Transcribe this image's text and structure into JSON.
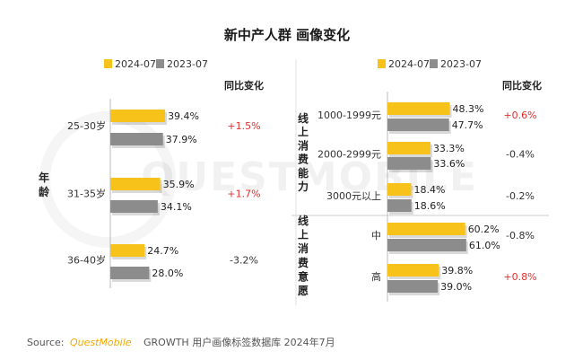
{
  "title": "新中产人群 画像变化",
  "colors": {
    "y2024": "#f7c21a",
    "y2023": "#8c8c8c",
    "pos": "#e03030",
    "neg": "#333333"
  },
  "watermark": "QUESTMOBILE",
  "source": {
    "prefix": "Source:",
    "brand": "QuestMobile",
    "rest": "GROWTH 用户画像标签数据库 2024年7月"
  },
  "chart_data": [
    {
      "type": "bar",
      "orientation": "horizontal",
      "legend": [
        "2024-07",
        "2023-07"
      ],
      "yoy_header": "同比变化",
      "groups": [
        {
          "label": "年龄",
          "categories": [
            "25-30岁",
            "31-35岁",
            "36-40岁"
          ],
          "series": [
            {
              "name": "2024-07",
              "values": [
                39.4,
                35.9,
                24.7
              ]
            },
            {
              "name": "2023-07",
              "values": [
                37.9,
                34.1,
                28.0
              ]
            }
          ],
          "yoy": [
            "+1.5%",
            "+1.7%",
            "-3.2%"
          ]
        }
      ]
    },
    {
      "type": "bar",
      "orientation": "horizontal",
      "legend": [
        "2024-07",
        "2023-07"
      ],
      "yoy_header": "同比变化",
      "groups": [
        {
          "label": "线上消费能力",
          "categories": [
            "1000-1999元",
            "2000-2999元",
            "3000元以上"
          ],
          "series": [
            {
              "name": "2024-07",
              "values": [
                48.3,
                33.3,
                18.4
              ]
            },
            {
              "name": "2023-07",
              "values": [
                47.7,
                33.6,
                18.6
              ]
            }
          ],
          "yoy": [
            "+0.6%",
            "-0.4%",
            "-0.2%"
          ]
        },
        {
          "label": "线上消费意愿",
          "categories": [
            "中",
            "高"
          ],
          "series": [
            {
              "name": "2024-07",
              "values": [
                60.2,
                39.8
              ]
            },
            {
              "name": "2023-07",
              "values": [
                61.0,
                39.0
              ]
            }
          ],
          "yoy": [
            "-0.8%",
            "+0.8%"
          ]
        }
      ]
    }
  ]
}
